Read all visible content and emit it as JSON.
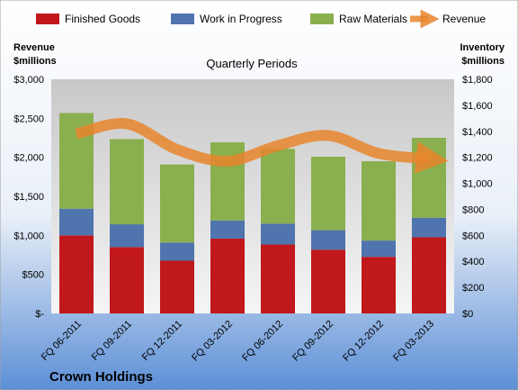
{
  "chart_data": {
    "type": "bar",
    "title": "Quarterly Periods",
    "company": "Crown Holdings",
    "categories": [
      "FQ 06-2011",
      "FQ 09-2011",
      "FQ 12-2011",
      "FQ 03-2012",
      "FQ 06-2012",
      "FQ 09-2012",
      "FQ 12-2012",
      "FQ 03-2013"
    ],
    "series": [
      {
        "name": "Finished Goods",
        "axis": "right",
        "stack": "inventory",
        "color": "#c0181b",
        "values": [
          600,
          510,
          405,
          575,
          530,
          490,
          435,
          585
        ]
      },
      {
        "name": "Work in Progress",
        "axis": "right",
        "stack": "inventory",
        "color": "#4f74ae",
        "values": [
          205,
          175,
          140,
          140,
          160,
          150,
          125,
          150
        ]
      },
      {
        "name": "Raw Materials",
        "axis": "right",
        "stack": "inventory",
        "color": "#8aaf4e",
        "values": [
          735,
          655,
          600,
          600,
          575,
          565,
          610,
          615
        ]
      },
      {
        "name": "Revenue",
        "axis": "left",
        "type": "line",
        "color": "#e8852d",
        "values": [
          2300,
          2430,
          2100,
          1950,
          2150,
          2280,
          2050,
          1980
        ]
      }
    ],
    "y_left": {
      "label_line1": "Revenue",
      "label_line2": "$millions",
      "range": [
        0,
        3000
      ],
      "tick_values": [
        0,
        500,
        1000,
        1500,
        2000,
        2500,
        3000
      ],
      "tick_labels": [
        "$-",
        "$500",
        "$1,000",
        "$1,500",
        "$2,000",
        "$2,500",
        "$3,000"
      ]
    },
    "y_right": {
      "label_line1": "Inventory",
      "label_line2": "$millions",
      "range": [
        0,
        1800
      ],
      "tick_values": [
        0,
        200,
        400,
        600,
        800,
        1000,
        1200,
        1400,
        1600,
        1800
      ],
      "tick_labels": [
        "$0",
        "$200",
        "$400",
        "$600",
        "$800",
        "$1,000",
        "$1,200",
        "$1,400",
        "$1,600",
        "$1,800"
      ]
    },
    "legend": {
      "position": "top"
    },
    "grid": false
  }
}
